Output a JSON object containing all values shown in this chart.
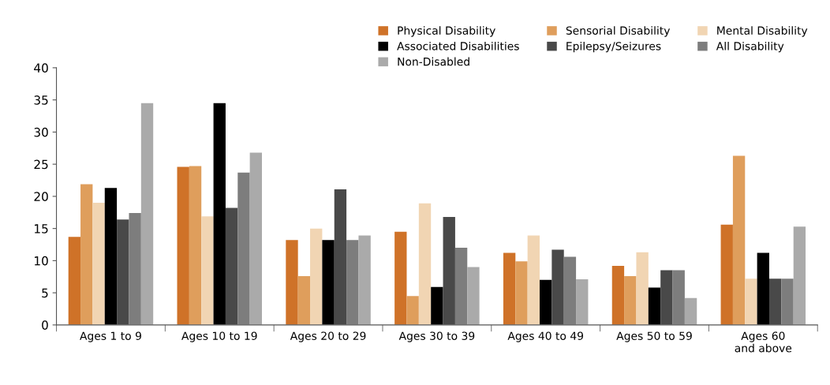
{
  "chart_data": {
    "type": "bar",
    "categories": [
      "Ages 1 to 9",
      "Ages 10 to 19",
      "Ages 20 to 29",
      "Ages 30 to 39",
      "Ages 40 to 49",
      "Ages 50 to 59",
      "Ages 60\nand above"
    ],
    "series": [
      {
        "name": "Physical Disability",
        "color": "#cf7228",
        "values": [
          13.7,
          24.6,
          13.2,
          14.5,
          11.2,
          9.2,
          15.6
        ]
      },
      {
        "name": "Sensorial Disability",
        "color": "#df9e5c",
        "values": [
          21.9,
          24.7,
          7.6,
          4.5,
          9.9,
          7.6,
          26.3
        ]
      },
      {
        "name": "Mental Disability",
        "color": "#f1d5b3",
        "values": [
          19.0,
          16.9,
          15.0,
          18.9,
          13.9,
          11.3,
          7.2
        ]
      },
      {
        "name": "Associated Disabilities",
        "color": "#000000",
        "values": [
          21.3,
          34.5,
          13.2,
          5.9,
          7.0,
          5.8,
          11.2
        ]
      },
      {
        "name": "Epilepsy/Seizures",
        "color": "#494949",
        "values": [
          16.4,
          18.2,
          21.1,
          16.8,
          11.7,
          8.5,
          7.2
        ]
      },
      {
        "name": "All Disability",
        "color": "#7d7d7d",
        "values": [
          17.4,
          23.7,
          13.2,
          12.0,
          10.6,
          8.5,
          7.2
        ]
      },
      {
        "name": "Non-Disabled",
        "color": "#aaaaaa",
        "values": [
          34.5,
          26.8,
          13.9,
          9.0,
          7.1,
          4.2,
          15.3
        ]
      }
    ],
    "ylim": [
      0,
      40
    ],
    "yticks": [
      0,
      5,
      10,
      15,
      20,
      25,
      30,
      35,
      40
    ],
    "legend": "top right",
    "grid": false
  }
}
